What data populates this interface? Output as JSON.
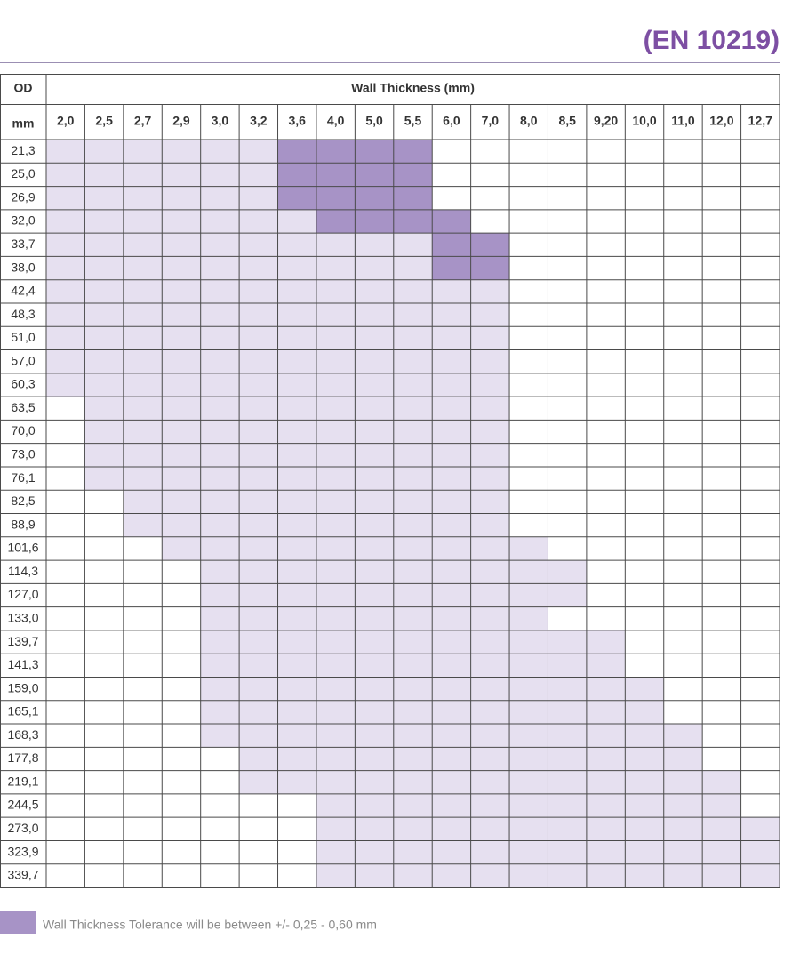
{
  "header": {
    "title": "(EN 10219)"
  },
  "table": {
    "od_label": "OD",
    "unit_label": "mm",
    "wall_label": "Wall Thickness (mm)",
    "thicknesses": [
      "2,0",
      "2,5",
      "2,7",
      "2,9",
      "3,0",
      "3,2",
      "3,6",
      "4,0",
      "5,0",
      "5,5",
      "6,0",
      "7,0",
      "8,0",
      "8,5",
      "9,20",
      "10,0",
      "11,0",
      "12,0",
      "12,7"
    ],
    "rows": [
      {
        "od": "21,3",
        "shading": "1111112222000000000"
      },
      {
        "od": "25,0",
        "shading": "1111112222000000000"
      },
      {
        "od": "26,9",
        "shading": "1111112222000000000"
      },
      {
        "od": "32,0",
        "shading": "1111111222200000000"
      },
      {
        "od": "33,7",
        "shading": "1111111111220000000"
      },
      {
        "od": "38,0",
        "shading": "1111111111220000000"
      },
      {
        "od": "42,4",
        "shading": "1111111111110000000"
      },
      {
        "od": "48,3",
        "shading": "1111111111110000000"
      },
      {
        "od": "51,0",
        "shading": "1111111111110000000"
      },
      {
        "od": "57,0",
        "shading": "1111111111110000000"
      },
      {
        "od": "60,3",
        "shading": "1111111111110000000"
      },
      {
        "od": "63,5",
        "shading": "0111111111110000000"
      },
      {
        "od": "70,0",
        "shading": "0111111111110000000"
      },
      {
        "od": "73,0",
        "shading": "0111111111110000000"
      },
      {
        "od": "76,1",
        "shading": "0111111111110000000"
      },
      {
        "od": "82,5",
        "shading": "0011111111110000000"
      },
      {
        "od": "88,9",
        "shading": "0011111111110000000"
      },
      {
        "od": "101,6",
        "shading": "0001111111111000000"
      },
      {
        "od": "114,3",
        "shading": "0000111111111100000"
      },
      {
        "od": "127,0",
        "shading": "0000111111111100000"
      },
      {
        "od": "133,0",
        "shading": "0000111111111000000"
      },
      {
        "od": "139,7",
        "shading": "0000111111111110000"
      },
      {
        "od": "141,3",
        "shading": "0000111111111110000"
      },
      {
        "od": "159,0",
        "shading": "0000111111111111000"
      },
      {
        "od": "165,1",
        "shading": "0000111111111111000"
      },
      {
        "od": "168,3",
        "shading": "0000111111111111100"
      },
      {
        "od": "177,8",
        "shading": "0000011111111111100"
      },
      {
        "od": "219,1",
        "shading": "0000011111111111110"
      },
      {
        "od": "244,5",
        "shading": "0000000111111111110"
      },
      {
        "od": "273,0",
        "shading": "0000000111111111111"
      },
      {
        "od": "323,9",
        "shading": "0000000111111111111"
      },
      {
        "od": "339,7",
        "shading": "0000000111111111111"
      }
    ]
  },
  "legend": {
    "text": "Wall Thickness Tolerance will be between +/- 0,25 - 0,60 mm"
  }
}
